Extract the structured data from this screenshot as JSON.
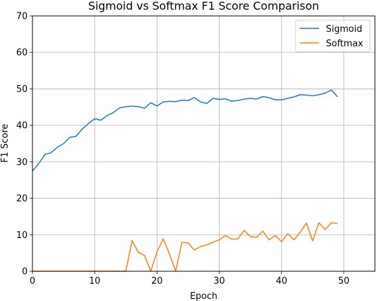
{
  "chart_data": {
    "type": "line",
    "title": "Sigmoid vs Softmax F1 Score Comparison",
    "xlabel": "Epoch",
    "ylabel": "F1 Score",
    "xlim": [
      0,
      55
    ],
    "ylim": [
      0,
      70
    ],
    "xticks": [
      0,
      10,
      20,
      30,
      40,
      50
    ],
    "yticks": [
      0,
      10,
      20,
      30,
      40,
      50,
      60,
      70
    ],
    "grid": true,
    "legend": "top-right",
    "x": [
      0,
      1,
      2,
      3,
      4,
      5,
      6,
      7,
      8,
      9,
      10,
      11,
      12,
      13,
      14,
      15,
      16,
      17,
      18,
      19,
      20,
      21,
      22,
      23,
      24,
      25,
      26,
      27,
      28,
      29,
      30,
      31,
      32,
      33,
      34,
      35,
      36,
      37,
      38,
      39,
      40,
      41,
      42,
      43,
      44,
      45,
      46,
      47,
      48,
      49
    ],
    "series": [
      {
        "name": "Sigmoid",
        "color": "#1f77b4",
        "values": [
          27.5,
          29.5,
          32.0,
          32.5,
          34.0,
          35.0,
          36.7,
          37.0,
          39.0,
          40.5,
          41.8,
          41.4,
          42.7,
          43.5,
          44.8,
          45.1,
          45.3,
          45.1,
          44.7,
          46.2,
          45.3,
          46.4,
          46.6,
          46.5,
          46.9,
          46.8,
          47.6,
          46.4,
          46.0,
          47.4,
          47.1,
          47.3,
          46.6,
          46.8,
          47.2,
          47.4,
          47.2,
          47.9,
          47.6,
          47.0,
          47.0,
          47.4,
          47.8,
          48.4,
          48.3,
          48.1,
          48.4,
          48.8,
          49.7,
          47.8
        ]
      },
      {
        "name": "Softmax",
        "color": "#ff7f0e",
        "values": [
          0,
          0,
          0,
          0,
          0,
          0,
          0,
          0,
          0,
          0,
          0,
          0,
          0,
          0,
          0,
          0,
          8.4,
          5.2,
          4.3,
          0,
          5.3,
          8.9,
          4.8,
          0,
          7.9,
          7.8,
          5.8,
          6.8,
          7.2,
          8.0,
          8.6,
          9.8,
          8.8,
          8.9,
          11.2,
          9.5,
          9.3,
          11.0,
          8.6,
          9.8,
          8.1,
          10.3,
          8.6,
          10.7,
          13.2,
          8.3,
          13.3,
          11.4,
          13.3,
          13.1
        ]
      }
    ]
  }
}
